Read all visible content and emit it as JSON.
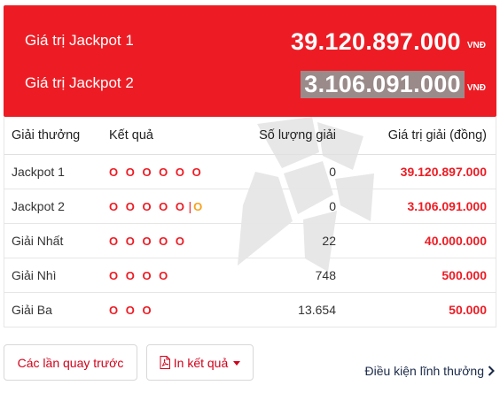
{
  "jackpots": [
    {
      "label": "Giá trị Jackpot 1",
      "amount": "39.120.897.000",
      "currency": "VNĐ"
    },
    {
      "label": "Giá trị Jackpot 2",
      "amount": "3.106.091.000",
      "currency": "VNĐ"
    }
  ],
  "table": {
    "headers": [
      "Giải thưởng",
      "Kết quả",
      "Số lượng giải",
      "Giá trị giải (đồng)"
    ],
    "rows": [
      {
        "prize": "Jackpot 1",
        "result": "O O O O O O",
        "extra": "",
        "count": "0",
        "value": "39.120.897.000"
      },
      {
        "prize": "Jackpot 2",
        "result": "O O O O O",
        "extra": "O",
        "count": "0",
        "value": "3.106.091.000"
      },
      {
        "prize": "Giải Nhất",
        "result": "O O O O O",
        "extra": "",
        "count": "22",
        "value": "40.000.000"
      },
      {
        "prize": "Giải Nhì",
        "result": "O O O O",
        "extra": "",
        "count": "748",
        "value": "500.000"
      },
      {
        "prize": "Giải Ba",
        "result": "O O O",
        "extra": "",
        "count": "13.654",
        "value": "50.000"
      }
    ],
    "separator": "|"
  },
  "actions": {
    "previous_label": "Các lần quay trước",
    "print_label": "In kết quả",
    "terms_label": "Điều kiện lĩnh thưởng"
  },
  "colors": {
    "accent": "#ed1c24",
    "extra_ball": "#f7a21b",
    "link": "#1a2a48"
  },
  "icons": {
    "print": "pdf-file-icon",
    "dropdown": "caret-down-icon",
    "terms": "chevron-right-icon",
    "watermark": "logo-watermark-icon"
  }
}
